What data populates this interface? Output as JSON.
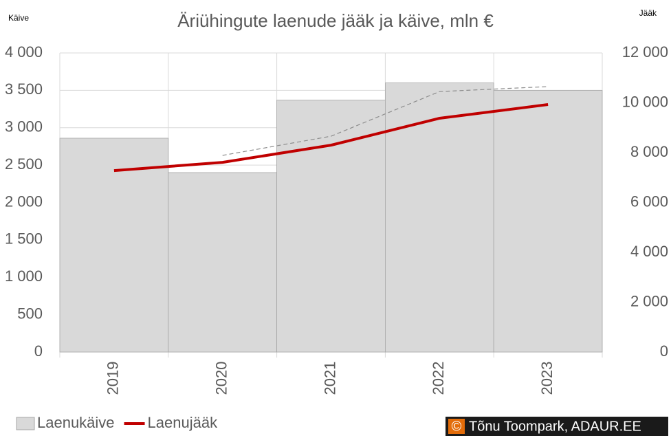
{
  "chart_data": {
    "type": "bar",
    "title": "Äriühingute laenude jääk ja käive, mln €",
    "y_label": "Käive",
    "y2_label": "Jääk",
    "categories": [
      "2019",
      "2020",
      "2021",
      "2022",
      "2023"
    ],
    "series": [
      {
        "name": "Laenukäive",
        "type": "bar",
        "color": "#d9d9d9",
        "values": [
          2860,
          2400,
          3370,
          3600,
          3500
        ]
      },
      {
        "name": "Laenujääk",
        "type": "line",
        "axis": "y2",
        "color": "#c00000",
        "values": [
          7280,
          7610,
          8300,
          9380,
          9930
        ]
      },
      {
        "type": "line",
        "axis": "y2",
        "color": "#8c8c8c",
        "dashed": true,
        "values": [
          null,
          7890,
          8660,
          10450,
          10650
        ]
      }
    ],
    "ylim": [
      0,
      4000
    ],
    "yticks": [
      0,
      500,
      {
        "value": 1000,
        "label": "1 000"
      },
      {
        "value": 1500,
        "label": "1 500"
      },
      {
        "value": 2000,
        "label": "2 000"
      },
      {
        "value": 2500,
        "label": "2 500"
      },
      {
        "value": 3000,
        "label": "3 000"
      },
      {
        "value": 3500,
        "label": "3 500"
      },
      {
        "value": 4000,
        "label": "4 000"
      }
    ],
    "y2lim": [
      0,
      12000
    ],
    "y2ticks": [
      0,
      {
        "value": 2000,
        "label": "2 000"
      },
      {
        "value": 4000,
        "label": "4 000"
      },
      {
        "value": 6000,
        "label": "6 000"
      },
      {
        "value": 8000,
        "label": "8 000"
      },
      {
        "value": 10000,
        "label": "10 000"
      },
      {
        "value": 12000,
        "label": "12 000"
      }
    ],
    "grid": true,
    "legend": "bottom-left",
    "source_icon": "©",
    "source": "Tõnu Toompark, ADAUR.EE"
  }
}
